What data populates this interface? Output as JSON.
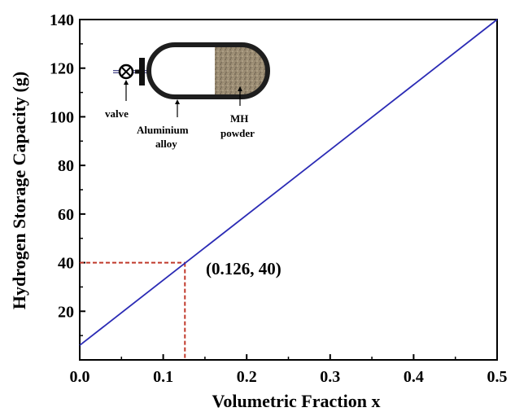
{
  "chart_data": {
    "type": "line",
    "xlabel": "Volumetric Fraction x",
    "ylabel": "Hydrogen Storage Capacity (g)",
    "xlim": [
      0.0,
      0.5
    ],
    "ylim": [
      0,
      140
    ],
    "x_ticks": [
      0.0,
      0.1,
      0.2,
      0.3,
      0.4,
      0.5
    ],
    "x_tick_labels": [
      "0.0",
      "0.1",
      "0.2",
      "0.3",
      "0.4",
      "0.5"
    ],
    "y_ticks": [
      20,
      40,
      60,
      80,
      100,
      120,
      140
    ],
    "y_tick_labels": [
      "20",
      "40",
      "60",
      "80",
      "100",
      "120",
      "140"
    ],
    "grid": false,
    "series": [
      {
        "x": [
          0.0,
          0.5
        ],
        "y": [
          6,
          140
        ],
        "color": "#2b2bb5"
      }
    ],
    "marked_point": {
      "x": 0.126,
      "y": 40,
      "label": "(0.126, 40)",
      "color": "#c0392b"
    },
    "inset": {
      "labels": {
        "valve": "valve",
        "alloy_line1": "Aluminium",
        "alloy_line2": "alloy",
        "powder_line1": "MH",
        "powder_line2": "powder"
      }
    }
  }
}
